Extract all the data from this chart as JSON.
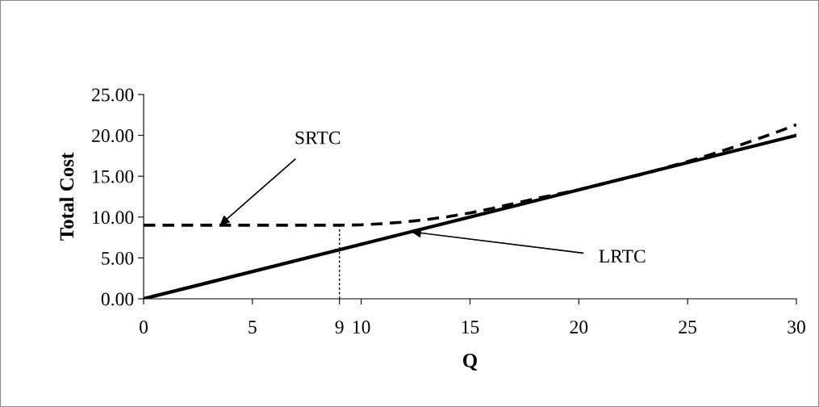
{
  "chart_data": {
    "type": "line",
    "xlabel": "Q",
    "ylabel": "Total Cost",
    "xlim": [
      0,
      30
    ],
    "ylim": [
      0,
      25
    ],
    "xticks": [
      0,
      5,
      9,
      10,
      15,
      20,
      25,
      30
    ],
    "yticks": [
      {
        "value": 0,
        "label": "0.00"
      },
      {
        "value": 5,
        "label": "5.00"
      },
      {
        "value": 10,
        "label": "10.00"
      },
      {
        "value": 15,
        "label": "15.00"
      },
      {
        "value": 20,
        "label": "20.00"
      },
      {
        "value": 25,
        "label": "25.00"
      }
    ],
    "series": [
      {
        "color": "#000000",
        "line_style": "dashed",
        "x": [
          0,
          3,
          6,
          9,
          10,
          11,
          12,
          13,
          14,
          15,
          16,
          17,
          18,
          19,
          20,
          21,
          22,
          23,
          24,
          25,
          26,
          27,
          28,
          29,
          30
        ],
        "values": [
          9.0,
          9.0,
          9.0,
          9.0,
          9.05,
          9.2,
          9.4,
          9.7,
          10.05,
          10.5,
          11.05,
          11.65,
          12.25,
          12.8,
          13.35,
          14.0,
          14.65,
          15.3,
          16.05,
          16.8,
          17.6,
          18.45,
          19.35,
          20.3,
          21.3
        ]
      },
      {
        "color": "#000000",
        "line_style": "solid",
        "x": [
          0,
          30
        ],
        "values": [
          0,
          20
        ]
      },
      {
        "color": "#000000",
        "line_style": "dotted",
        "x": [
          9,
          9
        ],
        "values": [
          0,
          9
        ]
      }
    ],
    "annotations": [
      {
        "text": "SRTC",
        "x": 3.5,
        "y": 9.0
      },
      {
        "text": "LRTC",
        "x": 12.3,
        "y": 8.2
      }
    ],
    "grid": false,
    "legend": false,
    "marker": "none"
  }
}
